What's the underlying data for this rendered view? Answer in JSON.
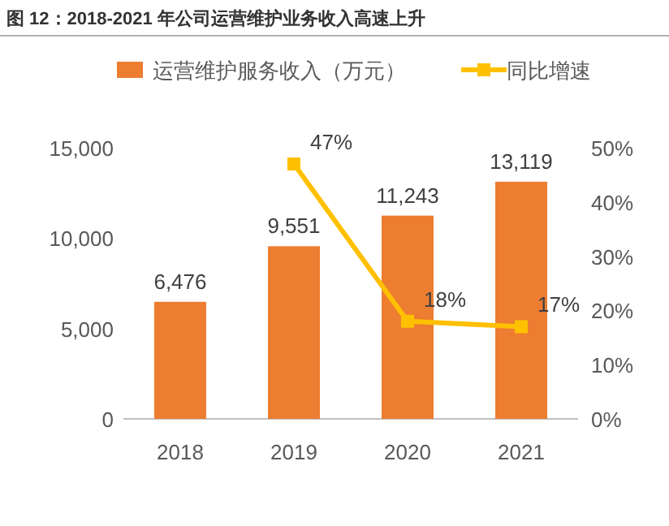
{
  "chart_data": {
    "type": "bar",
    "title": "图 12：2018-2021 年公司运营维护业务收入高速上升",
    "categories": [
      "2018",
      "2019",
      "2020",
      "2021"
    ],
    "series": [
      {
        "name": "运营维护服务收入（万元）",
        "color": "#ed7d31",
        "values": [
          6476,
          9551,
          11243,
          13119
        ],
        "value_labels": [
          "6,476",
          "9,551",
          "11,243",
          "13,119"
        ]
      },
      {
        "name": "同比增速",
        "type": "line",
        "axis": "y2",
        "color": "#ffc000",
        "marker": "square",
        "values": [
          null,
          47,
          18,
          17
        ],
        "value_labels": [
          null,
          "47%",
          "18%",
          "17%"
        ]
      }
    ],
    "ylim": [
      0,
      15000
    ],
    "yticks": [
      0,
      {
        "value": 5000,
        "label": "5,000"
      },
      {
        "value": 10000,
        "label": "10,000"
      },
      {
        "value": 15000,
        "label": "15,000"
      }
    ],
    "y2lim": [
      0,
      50
    ],
    "y2ticks": [
      {
        "value": 0,
        "label": "0%"
      },
      {
        "value": 10,
        "label": "10%"
      },
      {
        "value": 20,
        "label": "20%"
      },
      {
        "value": 30,
        "label": "30%"
      },
      {
        "value": 40,
        "label": "40%"
      },
      {
        "value": 50,
        "label": "50%"
      }
    ],
    "legend": "top"
  }
}
